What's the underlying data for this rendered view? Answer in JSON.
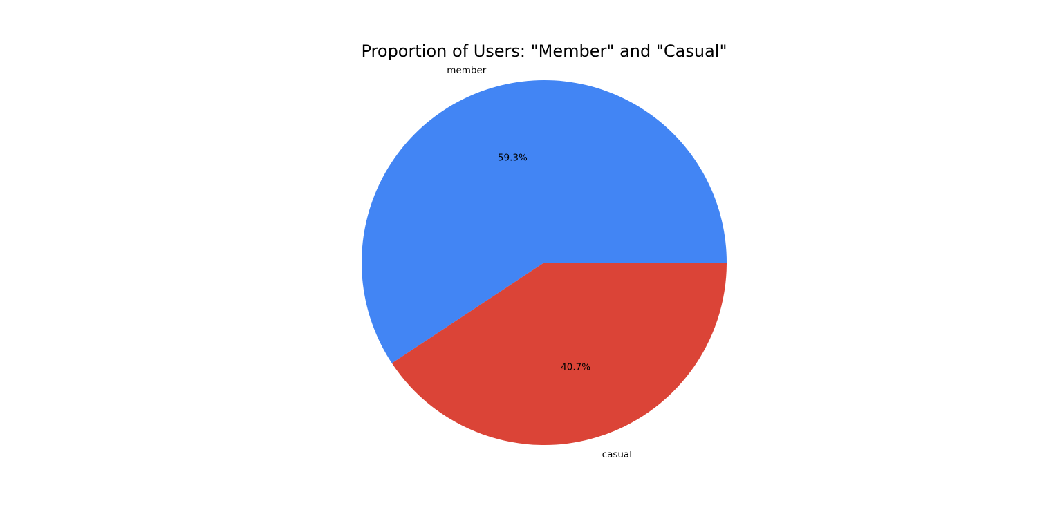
{
  "chart_data": {
    "type": "pie",
    "title": "Proportion of Users: \"Member\" and \"Casual\"",
    "labels": [
      "member",
      "casual"
    ],
    "values": [
      59.3,
      40.7
    ],
    "percent_labels": [
      "59.3%",
      "40.7%"
    ],
    "colors": [
      "#4285F4",
      "#DB4437"
    ],
    "start_angle_deg": 0,
    "direction": "counterclockwise",
    "legend": "none"
  }
}
